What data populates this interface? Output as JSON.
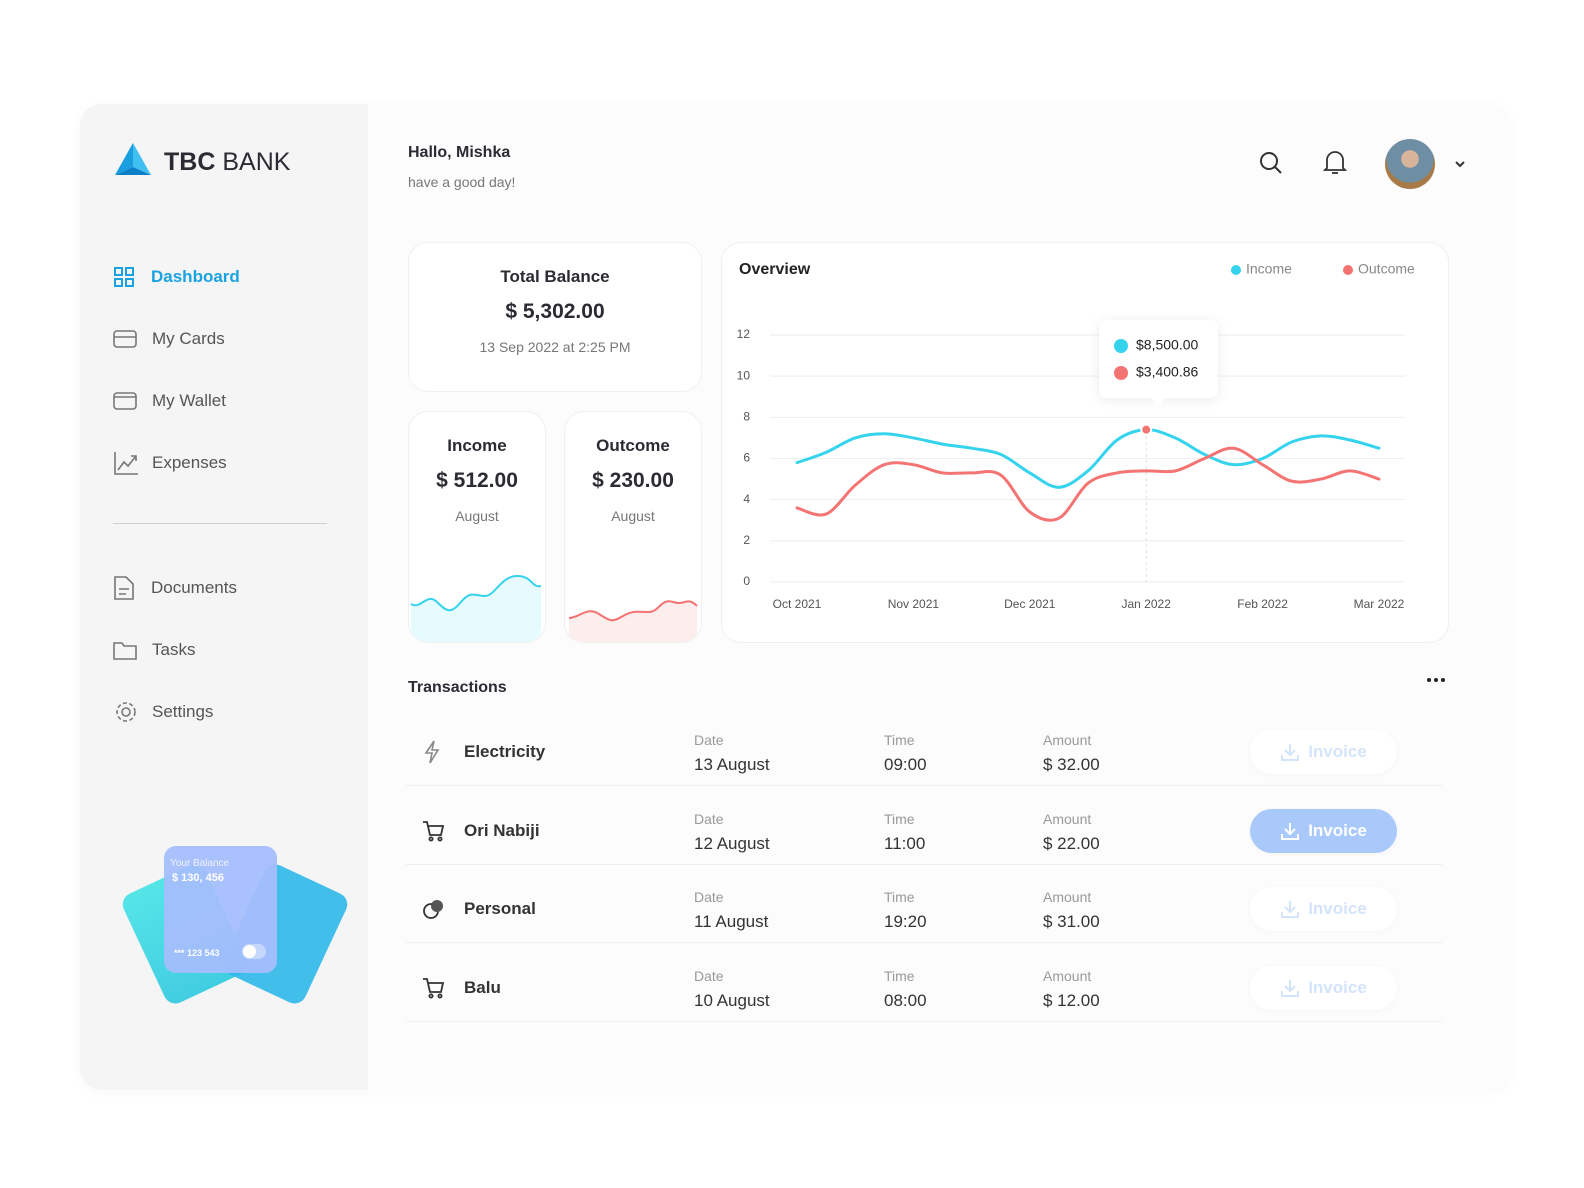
{
  "sidebar": {
    "logo": {
      "bold": "TBC",
      "light": "BANK"
    },
    "nav": [
      "Dashboard",
      "My Cards",
      "My Wallet",
      "Expenses"
    ],
    "nav_secondary": [
      "Documents",
      "Tasks",
      "Settings"
    ],
    "card": {
      "label": "Your Balance",
      "amount": "$ 130, 456",
      "number": "*** 123 543"
    }
  },
  "header": {
    "greeting": "Hallo, Mishka",
    "subtitle": "have a good day!"
  },
  "total_balance": {
    "title": "Total Balance",
    "amount": "$ 5,302.00",
    "date": "13 Sep 2022 at 2:25 PM"
  },
  "income": {
    "title": "Income",
    "amount": "$ 512.00",
    "period": "August"
  },
  "outcome": {
    "title": "Outcome",
    "amount": "$ 230.00",
    "period": "August"
  },
  "overview": {
    "type": "line",
    "title": "Overview",
    "categories": [
      "Oct 2021",
      null,
      null,
      null,
      "Nov 2021",
      null,
      null,
      null,
      "Dec 2021",
      null,
      null,
      null,
      "Jan 2022",
      null,
      null,
      null,
      "Feb 2022",
      null,
      null,
      null,
      "Mar 2022"
    ],
    "series": [
      {
        "name": "Income",
        "color": "#35d3ee",
        "values": [
          5.8,
          6.3,
          7.0,
          7.2,
          7.0,
          6.7,
          6.5,
          6.2,
          5.3,
          4.6,
          5.4,
          6.9,
          7.4,
          7.0,
          6.2,
          5.7,
          6.0,
          6.8,
          7.1,
          6.9,
          6.5
        ]
      },
      {
        "name": "Outcome",
        "color": "#f47373",
        "values": [
          3.6,
          3.3,
          4.7,
          5.7,
          5.7,
          5.3,
          5.3,
          5.2,
          3.4,
          3.1,
          4.8,
          5.3,
          5.4,
          5.4,
          6.0,
          6.5,
          5.7,
          4.9,
          5.0,
          5.4,
          5.0
        ]
      }
    ],
    "ylim": [
      0,
      12
    ],
    "yticks": [
      0,
      2,
      4,
      6,
      8,
      10,
      12
    ],
    "grid": true,
    "tooltip": {
      "income": "$8,500.00",
      "outcome": "$3,400.86"
    }
  },
  "transactions": {
    "title": "Transactions",
    "rows": [
      {
        "name": "Electricity",
        "date_label": "Date",
        "date": "13 August",
        "time_label": "Time",
        "time": "09:00",
        "amount_label": "Amount",
        "amount": "$ 32.00",
        "action": "Invoice"
      },
      {
        "name": "Ori Nabiji",
        "date_label": "Date",
        "date": "12 August",
        "time_label": "Time",
        "time": "11:00",
        "amount_label": "Amount",
        "amount": "$ 22.00",
        "action": "Invoice"
      },
      {
        "name": "Personal",
        "date_label": "Date",
        "date": "11 August",
        "time_label": "Time",
        "time": "19:20",
        "amount_label": "Amount",
        "amount": "$ 31.00",
        "action": "Invoice"
      },
      {
        "name": "Balu",
        "date_label": "Date",
        "date": "10 August",
        "time_label": "Time",
        "time": "08:00",
        "amount_label": "Amount",
        "amount": "$ 12.00",
        "action": "Invoice"
      }
    ]
  }
}
